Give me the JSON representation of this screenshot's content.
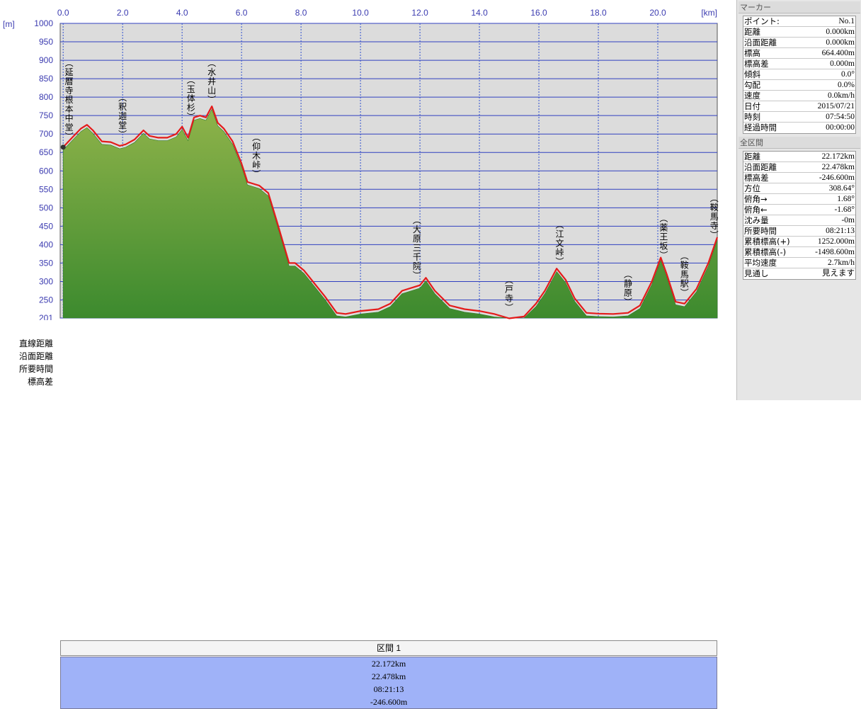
{
  "chart_data": {
    "type": "area",
    "x_unit": "[km]",
    "y_unit": "[m]",
    "xlim": [
      -0.1,
      22.0
    ],
    "ylim": [
      201,
      1000
    ],
    "x_ticks": [
      "0.0",
      "2.0",
      "4.0",
      "6.0",
      "8.0",
      "10.0",
      "12.0",
      "14.0",
      "16.0",
      "18.0",
      "20.0"
    ],
    "x_tick_values": [
      0,
      2,
      4,
      6,
      8,
      10,
      12,
      14,
      16,
      18,
      20
    ],
    "y_ticks": [
      "1000",
      "950",
      "900",
      "850",
      "800",
      "750",
      "700",
      "650",
      "600",
      "550",
      "500",
      "450",
      "400",
      "350",
      "300",
      "250",
      "201"
    ],
    "y_tick_values": [
      1000,
      950,
      900,
      850,
      800,
      750,
      700,
      650,
      600,
      550,
      500,
      450,
      400,
      350,
      300,
      250,
      201
    ],
    "grid": true,
    "series": [
      {
        "color": "#e41b1b",
        "x": [
          0,
          0.3,
          0.6,
          0.8,
          1.0,
          1.3,
          1.6,
          1.9,
          2.1,
          2.4,
          2.7,
          2.9,
          3.2,
          3.5,
          3.8,
          4.0,
          4.2,
          4.4,
          4.6,
          4.8,
          5.0,
          5.2,
          5.4,
          5.7,
          6.0,
          6.2,
          6.4,
          6.6,
          6.9,
          7.2,
          7.6,
          7.8,
          8.1,
          8.4,
          8.8,
          9.2,
          9.5,
          10.0,
          10.6,
          11.0,
          11.4,
          11.8,
          12.0,
          12.2,
          12.5,
          13.0,
          13.5,
          14.0,
          14.5,
          15.0,
          15.5,
          15.9,
          16.2,
          16.6,
          16.9,
          17.2,
          17.6,
          18.0,
          18.5,
          19.0,
          19.4,
          19.8,
          20.1,
          20.3,
          20.6,
          20.9,
          21.3,
          21.7,
          22.0
        ],
        "y": [
          664.4,
          690,
          715,
          725,
          710,
          680,
          678,
          668,
          672,
          685,
          710,
          695,
          690,
          690,
          700,
          720,
          690,
          745,
          750,
          745,
          775,
          730,
          715,
          680,
          620,
          570,
          565,
          560,
          540,
          460,
          350,
          350,
          330,
          300,
          260,
          215,
          212,
          220,
          225,
          240,
          275,
          285,
          290,
          310,
          275,
          235,
          225,
          220,
          212,
          200,
          205,
          240,
          275,
          335,
          305,
          255,
          215,
          213,
          212,
          215,
          235,
          300,
          365,
          320,
          245,
          240,
          280,
          350,
          420
        ]
      }
    ],
    "peak_labels": [
      {
        "label": "(延暦寺根本中堂)",
        "x": 0.2
      },
      {
        "label": "(釈迦堂)",
        "x": 2.0
      },
      {
        "label": "(玉体杉)",
        "x": 4.3
      },
      {
        "label": "(水井山)",
        "x": 5.0
      },
      {
        "label": "(仰木峠)",
        "x": 6.5
      },
      {
        "label": "(大原三千院)",
        "x": 11.9
      },
      {
        "label": "(戸寺)",
        "x": 15.0
      },
      {
        "label": "(江文峠)",
        "x": 16.7
      },
      {
        "label": "(静原)",
        "x": 19.0
      },
      {
        "label": "(薬王坂)",
        "x": 20.2
      },
      {
        "label": "(鞍馬駅)",
        "x": 20.9
      },
      {
        "label": "(鞍馬寺)",
        "x": 21.9
      }
    ]
  },
  "segment": {
    "header": "区間 1",
    "rows": [
      {
        "label": "直線距離",
        "value": "22.172km"
      },
      {
        "label": "沿面距離",
        "value": "22.478km"
      },
      {
        "label": "所要時間",
        "value": "08:21:13"
      },
      {
        "label": "標高差",
        "value": "-246.600m"
      }
    ]
  },
  "marker_panel": {
    "title": "マーカー",
    "rows": [
      {
        "k": "ポイント:",
        "v": "No.1"
      },
      {
        "k": "距離",
        "v": "0.000km"
      },
      {
        "k": "沿面距離",
        "v": "0.000km"
      },
      {
        "k": "標高",
        "v": "664.400m"
      },
      {
        "k": "標高差",
        "v": "0.000m"
      },
      {
        "k": "傾斜",
        "v": "0.0°"
      },
      {
        "k": "勾配",
        "v": "0.0%"
      },
      {
        "k": "速度",
        "v": "0.0km/h"
      },
      {
        "k": "日付",
        "v": "2015/07/21"
      },
      {
        "k": "時刻",
        "v": "07:54:50"
      },
      {
        "k": "経過時間",
        "v": "00:00:00"
      }
    ]
  },
  "total_panel": {
    "title": "全区間",
    "rows": [
      {
        "k": "距離",
        "v": "22.172km"
      },
      {
        "k": "沿面距離",
        "v": "22.478km"
      },
      {
        "k": "標高差",
        "v": "-246.600m"
      },
      {
        "k": "方位",
        "v": "308.64°"
      },
      {
        "k": "俯角→",
        "v": "1.68°"
      },
      {
        "k": "俯角←",
        "v": "-1.68°"
      },
      {
        "k": "沈み量",
        "v": "-0m"
      },
      {
        "k": "所要時間",
        "v": "08:21:13"
      },
      {
        "k": "累積標高(+)",
        "v": "1252.000m"
      },
      {
        "k": "累積標高(-)",
        "v": "-1498.600m"
      },
      {
        "k": "平均速度",
        "v": "2.7km/h"
      },
      {
        "k": "見通し",
        "v": "見えます"
      }
    ]
  },
  "colors": {
    "plot_bg": "#dcdcdc",
    "grid_h": "#3040c0",
    "grid_v": "#3050d0",
    "terrain_top": "#8fb34a",
    "terrain_bottom": "#3c8a2e",
    "route_line": "#e41b1b",
    "axis_text": "#3b3bb0",
    "segment_body": "#9fb2f8"
  }
}
